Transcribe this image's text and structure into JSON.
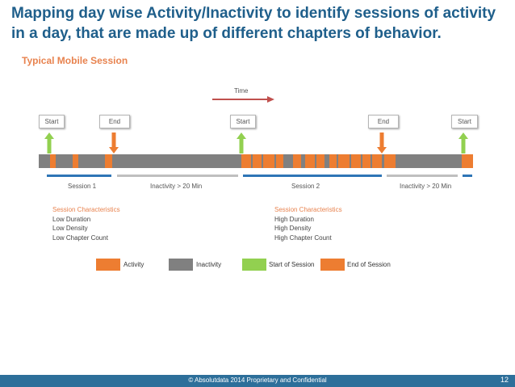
{
  "slide": {
    "title": "Mapping day wise Activity/Inactivity to identify sessions of activity in a day, that are made up of different chapters of behavior.",
    "subtitle": "Typical Mobile Session",
    "time_label": "Time"
  },
  "markers": {
    "start_1": "Start",
    "end_1": "End",
    "start_2": "Start",
    "end_2": "End",
    "start_3": "Start"
  },
  "segments": {
    "session_1": "Session 1",
    "inactivity_1": "Inactivity > 20 Min",
    "session_2": "Session 2",
    "inactivity_2": "Inactivity > 20 Min"
  },
  "session_1_characteristics": {
    "heading": "Session Characteristics",
    "items": [
      "Low Duration",
      "Low Density",
      "Low Chapter Count"
    ]
  },
  "session_2_characteristics": {
    "heading": "Session Characteristics",
    "items": [
      "High Duration",
      "High Density",
      "High Chapter Count"
    ]
  },
  "legend": {
    "activity": "Activity",
    "inactivity": "Inactivity",
    "start": "Start of Session",
    "end": "End of Session"
  },
  "colors": {
    "activity": "#ed7d31",
    "inactivity": "#808080",
    "start": "#92d050",
    "end": "#ed7d31",
    "session_line": "#2e75b6",
    "inactivity_line": "#bfbfbf",
    "title": "#1f5f8b",
    "footer": "#2d6f9a"
  },
  "footer": {
    "copyright": "© Absolutdata 2014 Proprietary and Confidential",
    "page": "12"
  }
}
